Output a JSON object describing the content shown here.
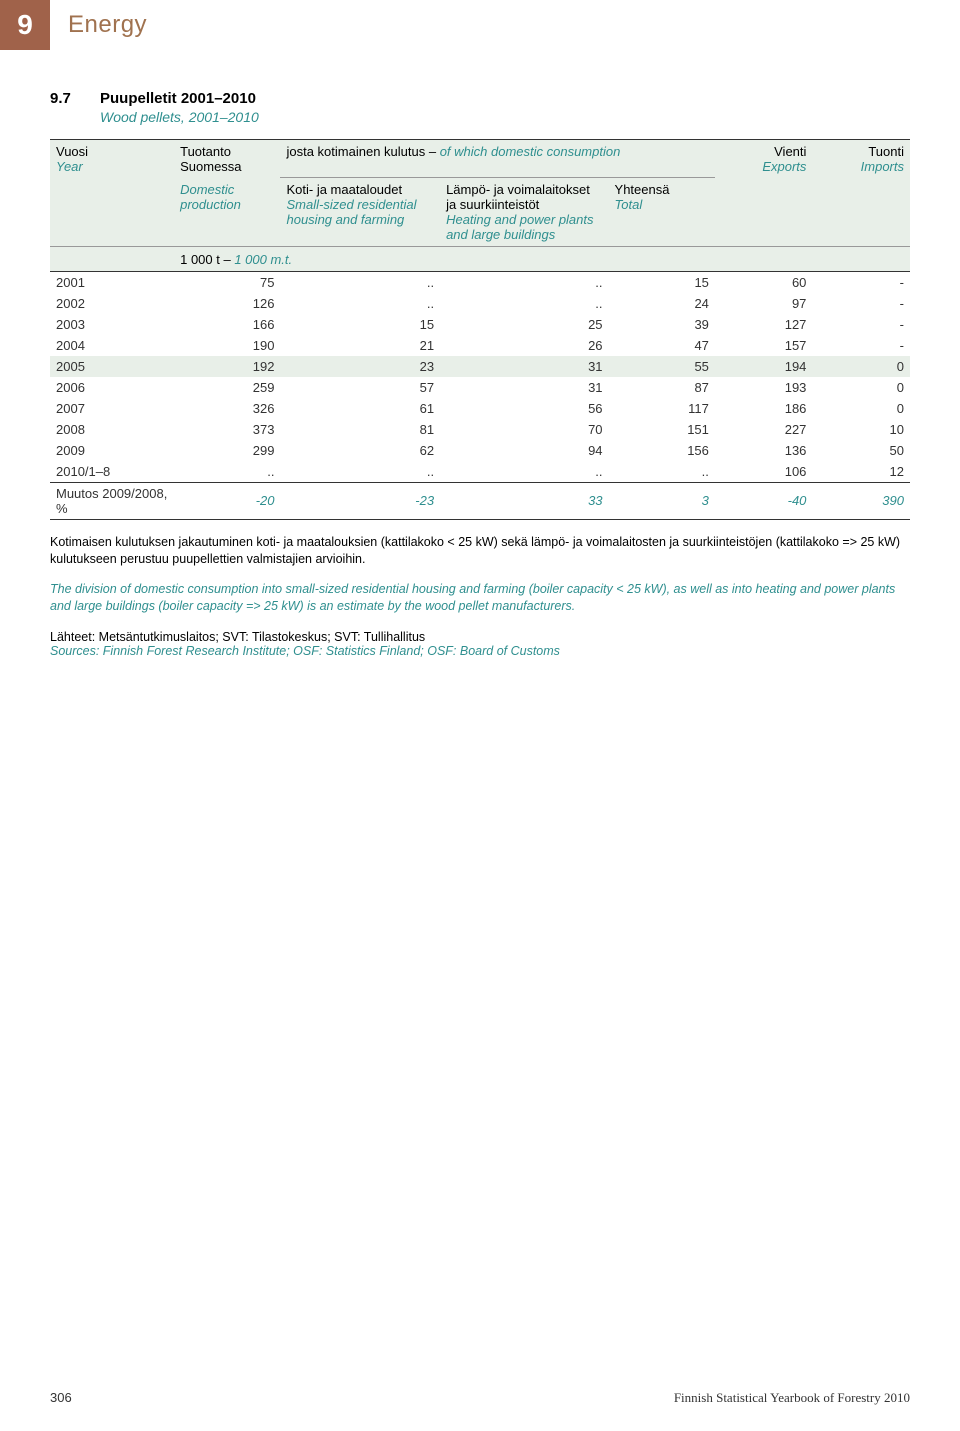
{
  "chapter": {
    "num": "9",
    "title": "Energy"
  },
  "table": {
    "num": "9.7",
    "title_fi": "Puupelletit  2001–2010",
    "title_en": "Wood pellets, 2001–2010"
  },
  "headers": {
    "vuosi_fi": "Vuosi",
    "vuosi_en": "Year",
    "tuotanto_fi": "Tuotanto",
    "suomessa_fi": "Suomessa",
    "josta_fi": "josta kotimainen kulutus – ",
    "josta_en": "of which domestic consumption",
    "vienti_fi": "Vienti",
    "vienti_en": "Exports",
    "tuonti_fi": "Tuonti",
    "tuonti_en": "Imports",
    "domestic_en": "Domestic",
    "production_en": "production",
    "koti_fi": "Koti- ja maataloudet",
    "small_en": "Small-sized residential",
    "housing_en": "housing and farming",
    "lampo_fi": "Lämpö- ja voimalaitokset",
    "suur_fi": "ja suurkiinteistöt",
    "heating_en": "Heating and power plants",
    "large_en": "and large buildings",
    "yhteensa_fi": "Yhteensä",
    "total_en": "Total",
    "unit_fi": "1 000 t – ",
    "unit_en": "1 000 m.t."
  },
  "rows": [
    {
      "y": "2001",
      "c1": "75",
      "c2": "..",
      "c3": "..",
      "c4": "15",
      "c5": "60",
      "c6": "-",
      "hl": false
    },
    {
      "y": "2002",
      "c1": "126",
      "c2": "..",
      "c3": "..",
      "c4": "24",
      "c5": "97",
      "c6": "-",
      "hl": false
    },
    {
      "y": "2003",
      "c1": "166",
      "c2": "15",
      "c3": "25",
      "c4": "39",
      "c5": "127",
      "c6": "-",
      "hl": false
    },
    {
      "y": "2004",
      "c1": "190",
      "c2": "21",
      "c3": "26",
      "c4": "47",
      "c5": "157",
      "c6": "-",
      "hl": false
    },
    {
      "y": "2005",
      "c1": "192",
      "c2": "23",
      "c3": "31",
      "c4": "55",
      "c5": "194",
      "c6": "0",
      "hl": true
    },
    {
      "y": "2006",
      "c1": "259",
      "c2": "57",
      "c3": "31",
      "c4": "87",
      "c5": "193",
      "c6": "0",
      "hl": false
    },
    {
      "y": "2007",
      "c1": "326",
      "c2": "61",
      "c3": "56",
      "c4": "117",
      "c5": "186",
      "c6": "0",
      "hl": false
    },
    {
      "y": "2008",
      "c1": "373",
      "c2": "81",
      "c3": "70",
      "c4": "151",
      "c5": "227",
      "c6": "10",
      "hl": false
    },
    {
      "y": "2009",
      "c1": "299",
      "c2": "62",
      "c3": "94",
      "c4": "156",
      "c5": "136",
      "c6": "50",
      "hl": false
    },
    {
      "y": "2010/1–8",
      "c1": "..",
      "c2": "..",
      "c3": "..",
      "c4": "..",
      "c5": "106",
      "c6": "12",
      "hl": false
    }
  ],
  "summary": {
    "label": "Muutos 2009/2008, %",
    "c1": "-20",
    "c2": "-23",
    "c3": "33",
    "c4": "3",
    "c5": "-40",
    "c6": "390"
  },
  "note_fi": "Kotimaisen kulutuksen jakautuminen koti- ja maatalouksien (kattilakoko < 25 kW) sekä lämpö- ja voimalaitosten ja suurkiinteistöjen (kattilakoko => 25 kW) kulutukseen perustuu puupellettien valmistajien arvioihin.",
  "note_en": "The division of domestic consumption into small-sized residential housing and farming (boiler capacity < 25 kW), as well as into heating and power plants and large buildings (boiler capacity => 25 kW) is an estimate by the wood pellet manufacturers.",
  "sources_fi": "Lähteet: Metsäntutkimuslaitos; SVT: Tilastokeskus; SVT: Tullihallitus",
  "sources_en": "Sources: Finnish Forest Research Institute; OSF: Statistics Finland; OSF: Board of Customs",
  "footer": {
    "page": "306",
    "book": "Finnish Statistical Yearbook of Forestry 2010"
  },
  "colors": {
    "accent_brown": "#a0624a",
    "title_brown": "#a0724f",
    "teal": "#2f8f8f",
    "header_bg": "#e8efe8"
  }
}
